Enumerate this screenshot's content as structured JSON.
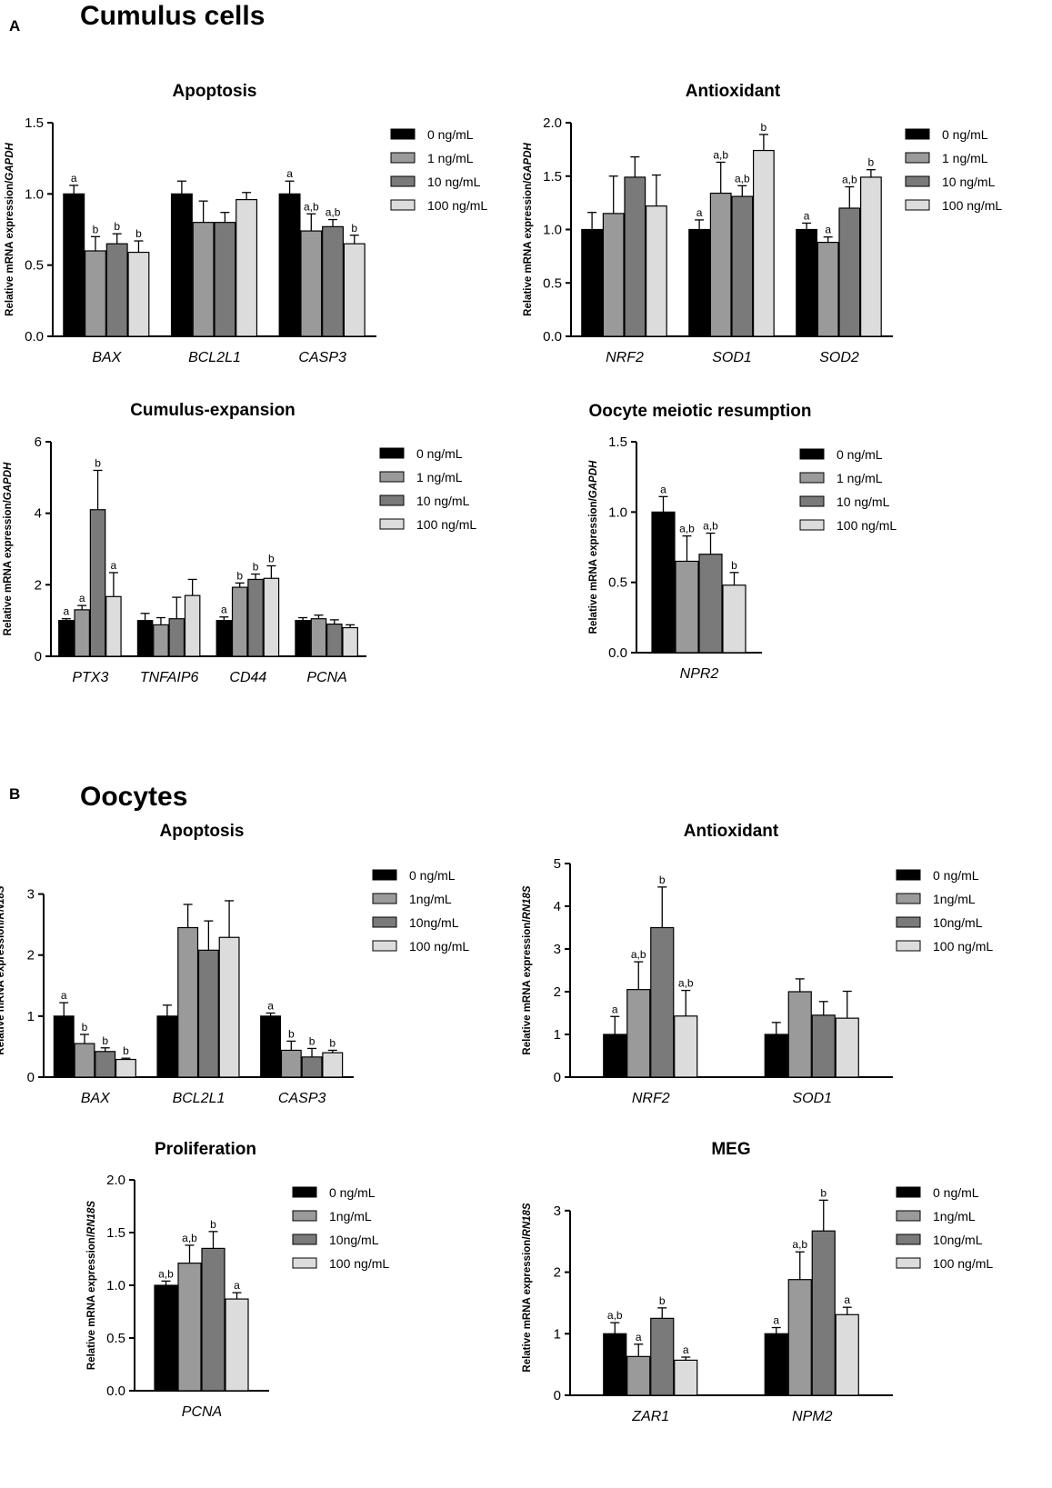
{
  "figure": {
    "section_a": {
      "letter": "A",
      "title": "Cumulus cells"
    },
    "section_b": {
      "letter": "B",
      "title": "Oocytes"
    }
  },
  "colors": {
    "series": [
      "#000000",
      "#9a9a9a",
      "#7a7a7a",
      "#dcdcdc"
    ]
  },
  "chart_data": [
    {
      "id": "cc-apoptosis",
      "type": "bar",
      "section": "A",
      "title": "Apoptosis",
      "ylabel": "Relative mRNA expression/",
      "ylabel_gene": "GAPDH",
      "ylim": [
        0,
        1.5
      ],
      "yticks": [
        0,
        0.5,
        1.0,
        1.5
      ],
      "tick_labels": [
        "0.0",
        "0.5",
        "1.0",
        "1.5"
      ],
      "categories": [
        "BAX",
        "BCL2L1",
        "CASP3"
      ],
      "series": [
        {
          "name": "0 ng/mL",
          "values": [
            1.0,
            1.0,
            1.0
          ],
          "errors": [
            0.06,
            0.09,
            0.09
          ],
          "sig": [
            "a",
            "",
            "a"
          ]
        },
        {
          "name": "1 ng/mL",
          "values": [
            0.6,
            0.8,
            0.74
          ],
          "errors": [
            0.1,
            0.15,
            0.12
          ],
          "sig": [
            "b",
            "",
            "a,b"
          ]
        },
        {
          "name": "10 ng/mL",
          "values": [
            0.65,
            0.8,
            0.77
          ],
          "errors": [
            0.07,
            0.07,
            0.05
          ],
          "sig": [
            "b",
            "",
            "a,b"
          ]
        },
        {
          "name": "100 ng/mL",
          "values": [
            0.59,
            0.96,
            0.65
          ],
          "errors": [
            0.08,
            0.05,
            0.06
          ],
          "sig": [
            "b",
            "",
            "b"
          ]
        }
      ]
    },
    {
      "id": "cc-antioxidant",
      "type": "bar",
      "section": "A",
      "title": "Antioxidant",
      "ylabel": "Relative mRNA expression/",
      "ylabel_gene": "GAPDH",
      "ylim": [
        0,
        2.0
      ],
      "yticks": [
        0,
        0.5,
        1.0,
        1.5,
        2.0
      ],
      "tick_labels": [
        "0.0",
        "0.5",
        "1.0",
        "1.5",
        "2.0"
      ],
      "categories": [
        "NRF2",
        "SOD1",
        "SOD2"
      ],
      "series": [
        {
          "name": "0 ng/mL",
          "values": [
            1.0,
            1.0,
            1.0
          ],
          "errors": [
            0.16,
            0.09,
            0.06
          ],
          "sig": [
            "",
            "a",
            "a"
          ]
        },
        {
          "name": "1 ng/mL",
          "values": [
            1.15,
            1.34,
            0.88
          ],
          "errors": [
            0.35,
            0.29,
            0.05
          ],
          "sig": [
            "",
            "a,b",
            "a"
          ]
        },
        {
          "name": "10 ng/mL",
          "values": [
            1.49,
            1.31,
            1.2
          ],
          "errors": [
            0.19,
            0.1,
            0.2
          ],
          "sig": [
            "",
            "a,b",
            "a,b"
          ]
        },
        {
          "name": "100 ng/mL",
          "values": [
            1.22,
            1.74,
            1.49
          ],
          "errors": [
            0.29,
            0.15,
            0.07
          ],
          "sig": [
            "",
            "b",
            "b"
          ]
        }
      ]
    },
    {
      "id": "cc-cumulus-expansion",
      "type": "bar",
      "section": "A",
      "title": "Cumulus-expansion",
      "ylabel": "Relative mRNA expression/",
      "ylabel_gene": "GAPDH",
      "ylim": [
        0,
        6
      ],
      "yticks": [
        0,
        2,
        4,
        6
      ],
      "tick_labels": [
        "0",
        "2",
        "4",
        "6"
      ],
      "categories": [
        "PTX3",
        "TNFAIP6",
        "CD44",
        "PCNA"
      ],
      "series": [
        {
          "name": "0 ng/mL",
          "values": [
            1.0,
            1.0,
            1.0,
            1.0
          ],
          "errors": [
            0.05,
            0.2,
            0.1,
            0.08
          ],
          "sig": [
            "a",
            "",
            "a",
            ""
          ]
        },
        {
          "name": "1 ng/mL",
          "values": [
            1.3,
            0.88,
            1.93,
            1.05
          ],
          "errors": [
            0.12,
            0.2,
            0.12,
            0.1
          ],
          "sig": [
            "a",
            "",
            "b",
            ""
          ]
        },
        {
          "name": "10 ng/mL",
          "values": [
            4.1,
            1.05,
            2.15,
            0.9
          ],
          "errors": [
            1.1,
            0.6,
            0.15,
            0.12
          ],
          "sig": [
            "b",
            "",
            "b",
            ""
          ]
        },
        {
          "name": "100 ng/mL",
          "values": [
            1.67,
            1.7,
            2.18,
            0.8
          ],
          "errors": [
            0.67,
            0.45,
            0.35,
            0.08
          ],
          "sig": [
            "a",
            "",
            "b",
            ""
          ]
        }
      ]
    },
    {
      "id": "cc-oocyte-meiotic-resumption",
      "type": "bar",
      "section": "A",
      "title": "Oocyte meiotic resumption",
      "ylabel": "Relative mRNA expression/",
      "ylabel_gene": "GAPDH",
      "ylim": [
        0,
        1.5
      ],
      "yticks": [
        0,
        0.5,
        1.0,
        1.5
      ],
      "tick_labels": [
        "0.0",
        "0.5",
        "1.0",
        "1.5"
      ],
      "categories": [
        "NPR2"
      ],
      "series": [
        {
          "name": "0 ng/mL",
          "values": [
            1.0
          ],
          "errors": [
            0.11
          ],
          "sig": [
            "a"
          ]
        },
        {
          "name": "1 ng/mL",
          "values": [
            0.65
          ],
          "errors": [
            0.18
          ],
          "sig": [
            "a,b"
          ]
        },
        {
          "name": "10 ng/mL",
          "values": [
            0.7
          ],
          "errors": [
            0.15
          ],
          "sig": [
            "a,b"
          ]
        },
        {
          "name": "100 ng/mL",
          "values": [
            0.48
          ],
          "errors": [
            0.09
          ],
          "sig": [
            "b"
          ]
        }
      ]
    },
    {
      "id": "oo-apoptosis",
      "type": "bar",
      "section": "B",
      "title": "Apoptosis",
      "ylabel": "Relative mRNA expression/",
      "ylabel_gene": "RN18S",
      "ylim": [
        0,
        3.5
      ],
      "yticks": [
        0,
        1,
        2,
        3
      ],
      "tick_labels": [
        "0",
        "1",
        "2",
        "3"
      ],
      "categories": [
        "BAX",
        "BCL2L1",
        "CASP3"
      ],
      "series": [
        {
          "name": "0 ng/mL",
          "values": [
            1.0,
            1.0,
            1.0
          ],
          "errors": [
            0.22,
            0.18,
            0.05
          ],
          "sig": [
            "a",
            "",
            "a"
          ]
        },
        {
          "name": "1ng/mL",
          "values": [
            0.55,
            2.45,
            0.44
          ],
          "errors": [
            0.15,
            0.38,
            0.15
          ],
          "sig": [
            "b",
            "",
            "b"
          ]
        },
        {
          "name": "10ng/mL",
          "values": [
            0.42,
            2.08,
            0.33
          ],
          "errors": [
            0.06,
            0.48,
            0.14
          ],
          "sig": [
            "b",
            "",
            "b"
          ]
        },
        {
          "name": "100 ng/mL",
          "values": [
            0.29,
            2.29,
            0.4
          ],
          "errors": [
            0.02,
            0.6,
            0.04
          ],
          "sig": [
            "b",
            "",
            "b"
          ]
        }
      ]
    },
    {
      "id": "oo-antioxidant",
      "type": "bar",
      "section": "B",
      "title": "Antioxidant",
      "ylabel": "Relative mRNA expression/",
      "ylabel_gene": "RN18S",
      "ylim": [
        0,
        5
      ],
      "yticks": [
        0,
        1,
        2,
        3,
        4,
        5
      ],
      "tick_labels": [
        "0",
        "1",
        "2",
        "3",
        "4",
        "5"
      ],
      "categories": [
        "NRF2",
        "SOD1"
      ],
      "series": [
        {
          "name": "0 ng/mL",
          "values": [
            1.0,
            1.0
          ],
          "errors": [
            0.42,
            0.28
          ],
          "sig": [
            "a",
            ""
          ]
        },
        {
          "name": "1ng/mL",
          "values": [
            2.05,
            2.0
          ],
          "errors": [
            0.65,
            0.3
          ],
          "sig": [
            "a,b",
            ""
          ]
        },
        {
          "name": "10ng/mL",
          "values": [
            3.5,
            1.45
          ],
          "errors": [
            0.95,
            0.32
          ],
          "sig": [
            "b",
            ""
          ]
        },
        {
          "name": "100 ng/mL",
          "values": [
            1.43,
            1.38
          ],
          "errors": [
            0.6,
            0.63
          ],
          "sig": [
            "a,b",
            ""
          ]
        }
      ]
    },
    {
      "id": "oo-proliferation",
      "type": "bar",
      "section": "B",
      "title": "Proliferation",
      "ylabel": "Relative mRNA expression/",
      "ylabel_gene": "RN18S",
      "ylim": [
        0,
        2.0
      ],
      "yticks": [
        0,
        0.5,
        1.0,
        1.5,
        2.0
      ],
      "tick_labels": [
        "0.0",
        "0.5",
        "1.0",
        "1.5",
        "2.0"
      ],
      "categories": [
        "PCNA"
      ],
      "series": [
        {
          "name": "0 ng/mL",
          "values": [
            1.0
          ],
          "errors": [
            0.04
          ],
          "sig": [
            "a,b"
          ]
        },
        {
          "name": "1ng/mL",
          "values": [
            1.21
          ],
          "errors": [
            0.17
          ],
          "sig": [
            "a,b"
          ]
        },
        {
          "name": "10ng/mL",
          "values": [
            1.35
          ],
          "errors": [
            0.16
          ],
          "sig": [
            "b"
          ]
        },
        {
          "name": "100 ng/mL",
          "values": [
            0.87
          ],
          "errors": [
            0.06
          ],
          "sig": [
            "a"
          ]
        }
      ]
    },
    {
      "id": "oo-meg",
      "type": "bar",
      "section": "B",
      "title": "MEG",
      "ylabel": "Relative mRNA expression/",
      "ylabel_gene": "RN18S",
      "ylim": [
        0,
        3.5
      ],
      "yticks": [
        0,
        1,
        2,
        3
      ],
      "tick_labels": [
        "0",
        "1",
        "2",
        "3"
      ],
      "categories": [
        "ZAR1",
        "NPM2"
      ],
      "series": [
        {
          "name": "0 ng/mL",
          "values": [
            1.0,
            1.0
          ],
          "errors": [
            0.18,
            0.1
          ],
          "sig": [
            "a,b",
            "a"
          ]
        },
        {
          "name": "1ng/mL",
          "values": [
            0.63,
            1.88
          ],
          "errors": [
            0.2,
            0.45
          ],
          "sig": [
            "a",
            "a,b"
          ]
        },
        {
          "name": "10ng/mL",
          "values": [
            1.25,
            2.67
          ],
          "errors": [
            0.17,
            0.5
          ],
          "sig": [
            "b",
            "b"
          ]
        },
        {
          "name": "100 ng/mL",
          "values": [
            0.57,
            1.31
          ],
          "errors": [
            0.05,
            0.12
          ],
          "sig": [
            "a",
            "a"
          ]
        }
      ]
    }
  ]
}
